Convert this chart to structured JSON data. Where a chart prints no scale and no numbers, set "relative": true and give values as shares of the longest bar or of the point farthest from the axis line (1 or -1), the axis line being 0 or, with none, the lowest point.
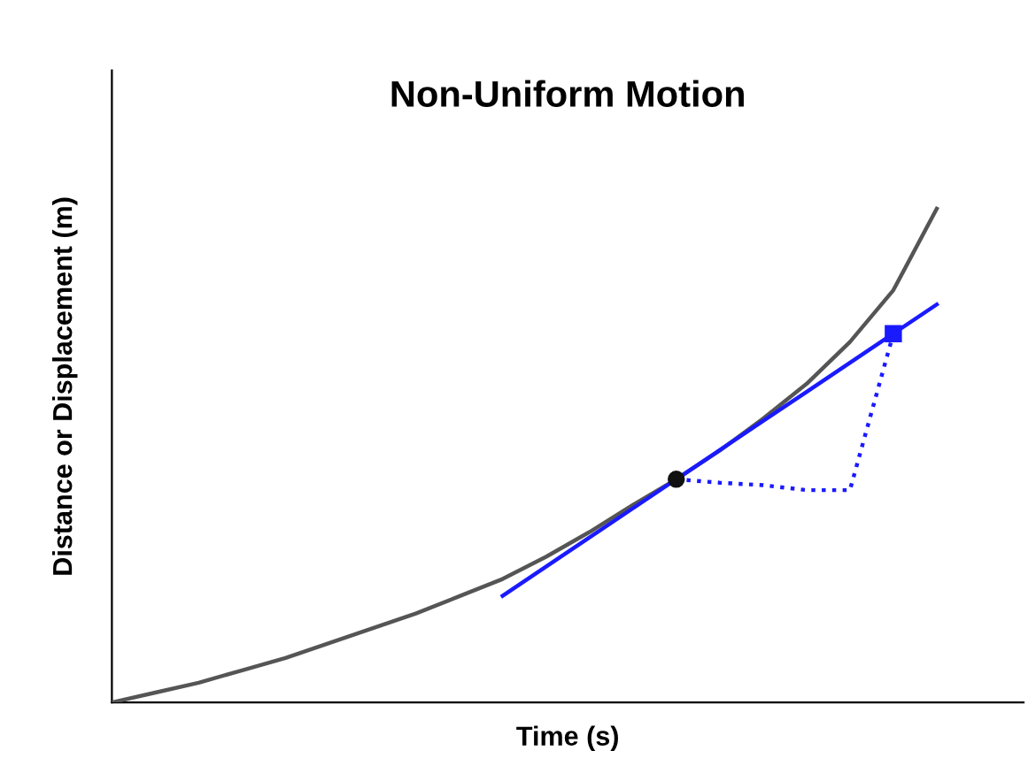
{
  "chart_data": {
    "type": "line",
    "title": "Non-Uniform Motion",
    "xlabel": "Time (s)",
    "ylabel": "Distance or Displacement (m)",
    "relative": true,
    "categories": [
      null,
      null,
      null,
      null,
      null,
      null,
      null,
      null,
      null,
      null,
      null,
      null,
      null,
      null,
      null,
      null,
      null,
      null,
      null,
      null,
      null,
      null
    ],
    "series": [
      {
        "color": "#555555",
        "values": [
          0,
          0.02,
          0.04,
          0.065,
          0.09,
          0.12,
          0.15,
          0.18,
          0.215,
          0.25,
          0.295,
          0.345,
          0.4,
          0.452,
          0.51,
          0.575,
          0.645,
          0.73,
          0.835,
          1,
          null,
          null
        ]
      },
      {
        "color": "#1a1aff",
        "values": [
          null,
          null,
          null,
          null,
          null,
          null,
          null,
          null,
          null,
          0.216,
          0.275,
          0.334,
          0.393,
          0.452,
          0.511,
          0.57,
          0.629,
          0.688,
          0.747,
          0.806,
          null,
          null
        ]
      },
      {
        "color": "#1a1aff",
        "line_style": "dotted",
        "values": [
          null,
          null,
          null,
          null,
          null,
          null,
          null,
          null,
          null,
          null,
          null,
          null,
          null,
          0.452,
          0.445,
          0.44,
          0.43,
          0.43,
          0.747,
          null,
          null,
          null
        ]
      },
      {
        "color": "#111111",
        "marker": "circle",
        "values": [
          null,
          null,
          null,
          null,
          null,
          null,
          null,
          null,
          null,
          null,
          null,
          null,
          null,
          0.452,
          null,
          null,
          null,
          null,
          null,
          null,
          null,
          null
        ]
      },
      {
        "color": "#1a1aff",
        "marker": "square",
        "values": [
          null,
          null,
          null,
          null,
          null,
          null,
          null,
          null,
          null,
          null,
          null,
          null,
          null,
          null,
          null,
          null,
          null,
          null,
          0.747,
          null,
          null,
          null
        ]
      }
    ]
  }
}
